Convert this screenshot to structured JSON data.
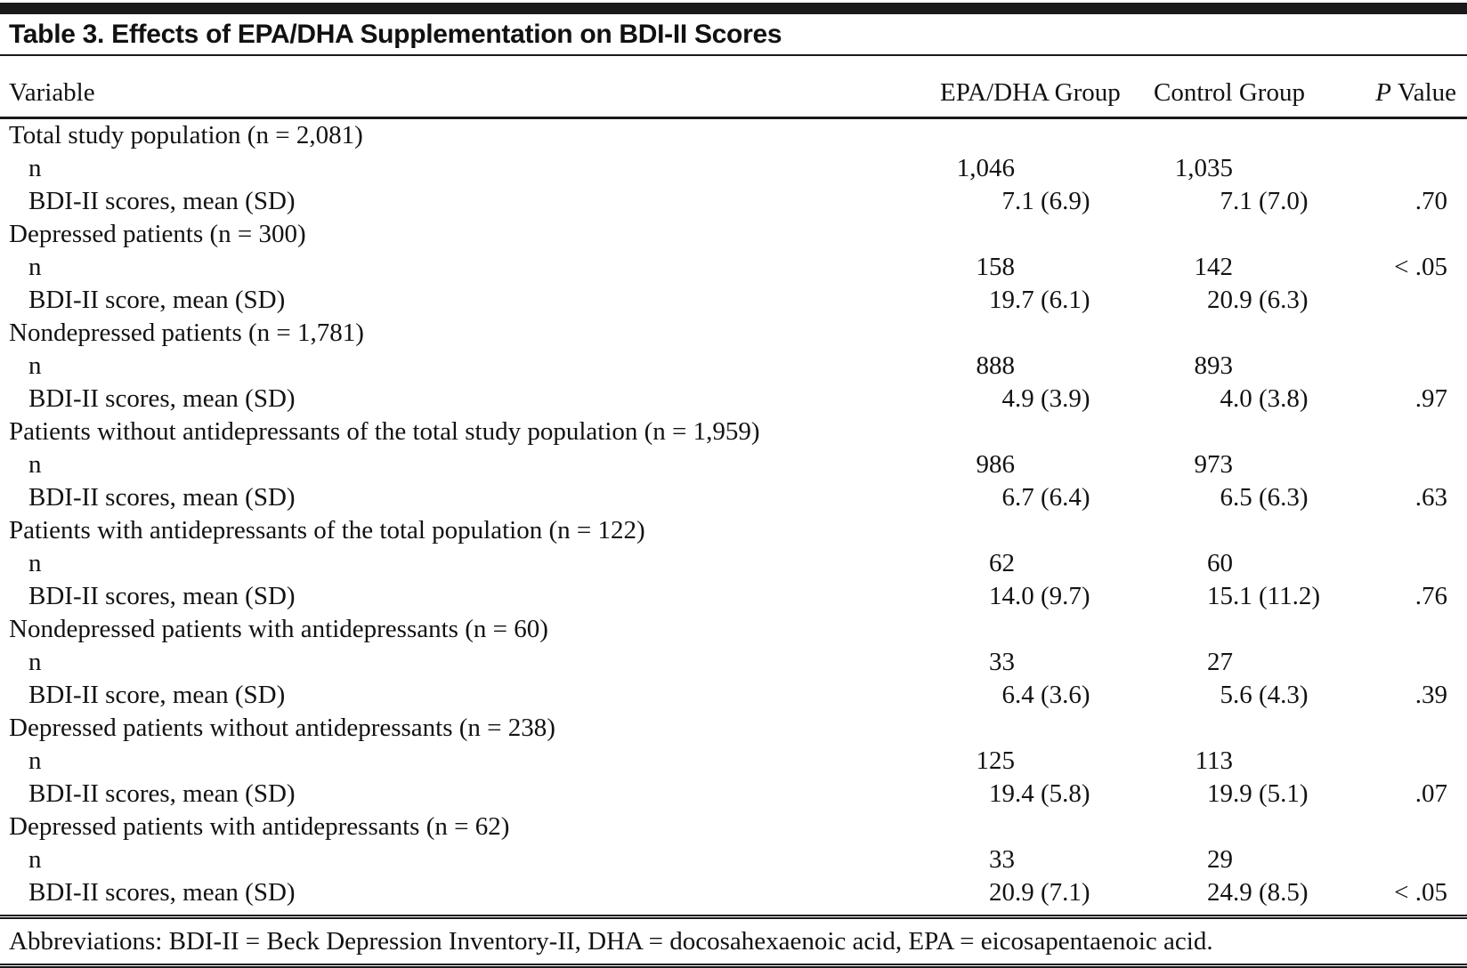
{
  "table": {
    "title": "Table 3. Effects of EPA/DHA Supplementation on BDI-II Scores",
    "header": {
      "variable": "Variable",
      "epa": "EPA/DHA Group",
      "control": "Control Group",
      "p_label": "P",
      "value_label": "Value"
    },
    "rows": [
      {
        "type": "section",
        "label": "Total study population (n = 2,081)"
      },
      {
        "type": "data",
        "label": "n",
        "epa": "1,046",
        "control": "1,035",
        "p": ""
      },
      {
        "type": "data",
        "label": "BDI-II scores, mean (SD)",
        "epa": "7.1 (6.9)",
        "control": "7.1 (7.0)",
        "p": ".70"
      },
      {
        "type": "section",
        "label": "Depressed patients (n = 300)"
      },
      {
        "type": "data",
        "label": "n",
        "epa": "158",
        "control": "142",
        "p": "< .05"
      },
      {
        "type": "data",
        "label": "BDI-II score, mean (SD)",
        "epa": "19.7 (6.1)",
        "control": "20.9 (6.3)",
        "p": ""
      },
      {
        "type": "section",
        "label": "Nondepressed patients (n = 1,781)"
      },
      {
        "type": "data",
        "label": "n",
        "epa": "888",
        "control": "893",
        "p": ""
      },
      {
        "type": "data",
        "label": "BDI-II scores, mean (SD)",
        "epa": "4.9 (3.9)",
        "control": "4.0 (3.8)",
        "p": ".97"
      },
      {
        "type": "section",
        "label": "Patients without antidepressants of the total study population (n = 1,959)"
      },
      {
        "type": "data",
        "label": "n",
        "epa": "986",
        "control": "973",
        "p": ""
      },
      {
        "type": "data",
        "label": "BDI-II scores, mean (SD)",
        "epa": "6.7 (6.4)",
        "control": "6.5 (6.3)",
        "p": ".63"
      },
      {
        "type": "section",
        "label": "Patients with antidepressants of the total population (n = 122)"
      },
      {
        "type": "data",
        "label": "n",
        "epa": "62",
        "control": "60",
        "p": ""
      },
      {
        "type": "data",
        "label": "BDI-II scores, mean (SD)",
        "epa": "14.0 (9.7)",
        "control": "15.1 (11.2)",
        "p": ".76"
      },
      {
        "type": "section",
        "label": "Nondepressed patients with antidepressants (n = 60)"
      },
      {
        "type": "data",
        "label": "n",
        "epa": "33",
        "control": "27",
        "p": ""
      },
      {
        "type": "data",
        "label": "BDI-II score, mean (SD)",
        "epa": "6.4 (3.6)",
        "control": "5.6 (4.3)",
        "p": ".39"
      },
      {
        "type": "section",
        "label": "Depressed patients without antidepressants (n = 238)"
      },
      {
        "type": "data",
        "label": "n",
        "epa": "125",
        "control": "113",
        "p": ""
      },
      {
        "type": "data",
        "label": "BDI-II scores, mean (SD)",
        "epa": "19.4 (5.8)",
        "control": "19.9 (5.1)",
        "p": ".07"
      },
      {
        "type": "section",
        "label": "Depressed patients with antidepressants (n = 62)"
      },
      {
        "type": "data",
        "label": "n",
        "epa": "33",
        "control": "29",
        "p": ""
      },
      {
        "type": "data",
        "label": "BDI-II scores, mean (SD)",
        "epa": "20.9 (7.1)",
        "control": "24.9 (8.5)",
        "p": "< .05"
      }
    ],
    "footnote": "Abbreviations: BDI-II = Beck Depression Inventory-II, DHA = docosahexaenoic acid, EPA = eicosapentaenoic acid."
  }
}
